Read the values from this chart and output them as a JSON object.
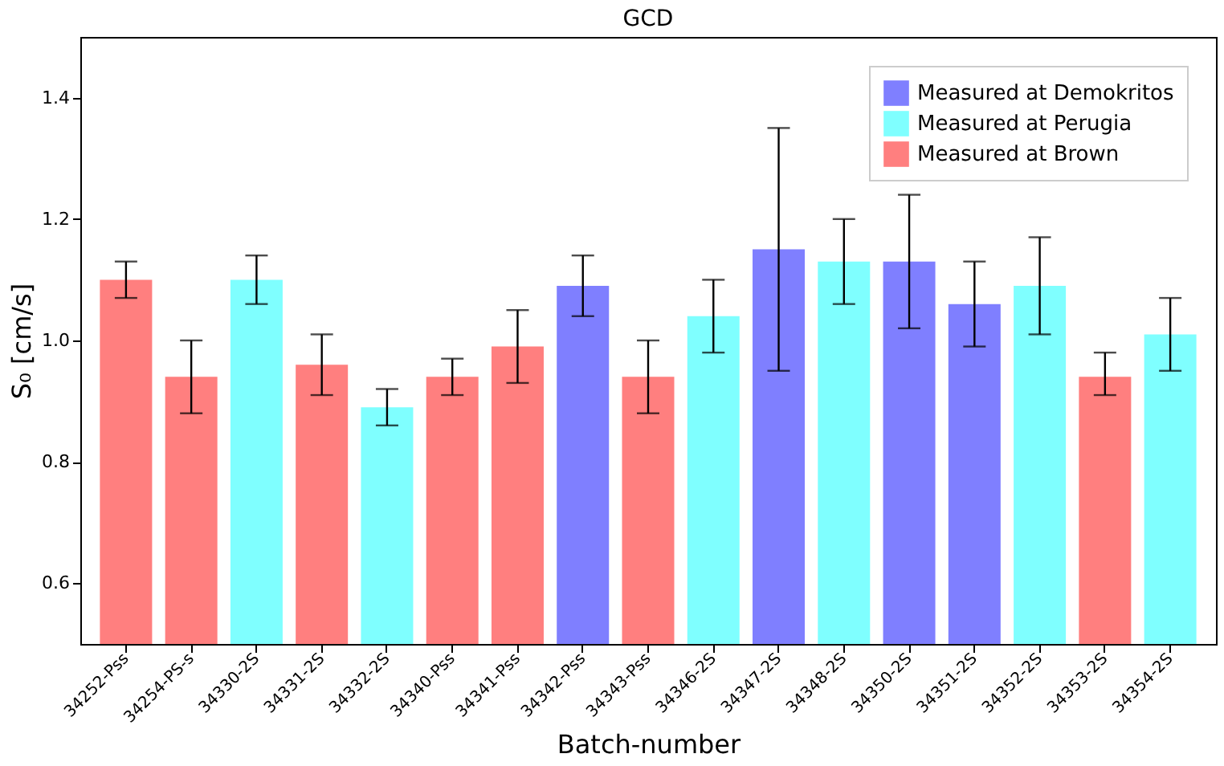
{
  "chart_data": {
    "type": "bar",
    "title": "GCD",
    "xlabel": "Batch-number",
    "ylabel": "S₀ [cm/s]",
    "categories": [
      "34252-Pss",
      "34254-PS-s",
      "34330-2S",
      "34331-2S",
      "34332-2S",
      "34340-Pss",
      "34341-Pss",
      "34342-Pss",
      "34343-Pss",
      "34346-2S",
      "34347-2S",
      "34348-2S",
      "34350-2S",
      "34351-2S",
      "34352-2S",
      "34353-2S",
      "34354-2S"
    ],
    "series": [
      {
        "name": "Measured at Demokritos",
        "color": "#7f7fff",
        "values": [
          null,
          null,
          null,
          null,
          null,
          null,
          null,
          1.09,
          null,
          null,
          1.15,
          null,
          1.13,
          1.06,
          null,
          null,
          null
        ],
        "errors": [
          null,
          null,
          null,
          null,
          null,
          null,
          null,
          [
            1.04,
            1.14
          ],
          null,
          null,
          [
            0.95,
            1.35
          ],
          null,
          [
            1.02,
            1.24
          ],
          [
            0.99,
            1.13
          ],
          null,
          null,
          null
        ]
      },
      {
        "name": "Measured at Perugia",
        "color": "#7fffff",
        "values": [
          null,
          null,
          1.1,
          null,
          0.89,
          null,
          null,
          null,
          null,
          1.04,
          null,
          1.13,
          null,
          null,
          1.09,
          null,
          1.01
        ],
        "errors": [
          null,
          null,
          [
            1.06,
            1.14
          ],
          null,
          [
            0.86,
            0.92
          ],
          null,
          null,
          null,
          null,
          [
            0.98,
            1.1
          ],
          null,
          [
            1.06,
            1.2
          ],
          null,
          null,
          [
            1.01,
            1.17
          ],
          null,
          [
            0.95,
            1.07
          ]
        ]
      },
      {
        "name": "Measured at Brown",
        "color": "#ff7f7f",
        "values": [
          1.1,
          0.94,
          null,
          0.96,
          null,
          0.94,
          0.99,
          null,
          0.94,
          null,
          null,
          null,
          null,
          null,
          null,
          0.94,
          null
        ],
        "errors": [
          [
            1.07,
            1.13
          ],
          [
            0.88,
            1.0
          ],
          null,
          [
            0.91,
            1.01
          ],
          null,
          [
            0.91,
            0.97
          ],
          [
            0.93,
            1.05
          ],
          null,
          [
            0.88,
            1.0
          ],
          null,
          null,
          null,
          null,
          null,
          null,
          [
            0.91,
            0.98
          ],
          null
        ]
      }
    ],
    "ylim": [
      0.5,
      1.5
    ],
    "yticks": [
      0.6,
      0.8,
      {
        "value": 1,
        "label": "1.0"
      },
      1.2,
      1.4
    ],
    "grid": false,
    "legend": "top right"
  }
}
